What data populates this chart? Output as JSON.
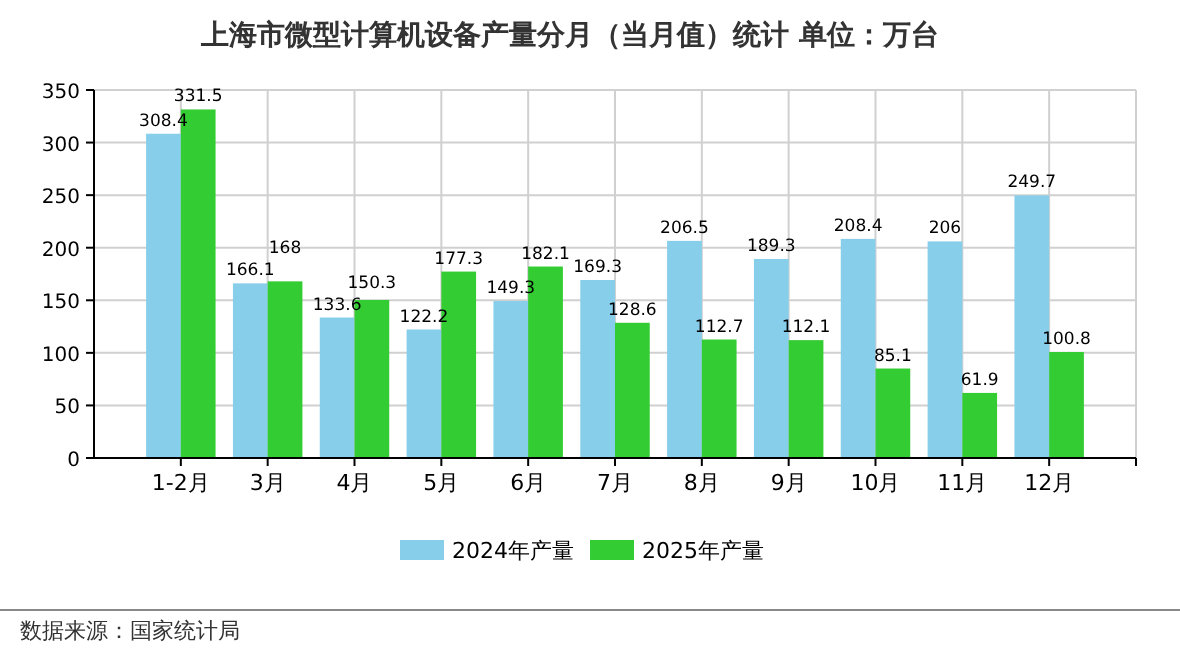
{
  "chart_data": {
    "type": "bar",
    "title": "上海市微型计算机设备产量分月（当月值）统计 单位：万台",
    "categories": [
      "1-2月",
      "3月",
      "4月",
      "5月",
      "6月",
      "7月",
      "8月",
      "9月",
      "10月",
      "11月",
      "12月"
    ],
    "series": [
      {
        "name": "2024年产量",
        "color": "#87ceeb",
        "values": [
          308.4,
          166.1,
          133.6,
          122.2,
          149.3,
          169.3,
          206.5,
          189.3,
          208.4,
          206,
          249.7
        ]
      },
      {
        "name": "2025年产量",
        "color": "#33cc33",
        "values": [
          331.5,
          168,
          150.3,
          177.3,
          182.1,
          128.6,
          112.7,
          112.1,
          85.1,
          61.9,
          100.8
        ]
      }
    ],
    "ylim": [
      0,
      350
    ],
    "yticks": [
      0,
      50,
      100,
      150,
      200,
      250,
      300,
      350
    ],
    "grid": true,
    "legend": "bottom",
    "data_labels": true,
    "annotations": [
      "数据来源：国家统计局"
    ]
  }
}
